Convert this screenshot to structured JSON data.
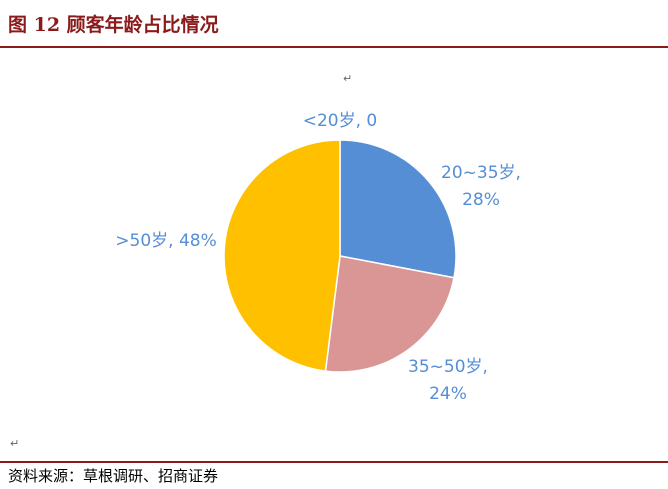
{
  "header": {
    "title": "图 12  顾客年龄占比情况"
  },
  "footer": {
    "source": "资料来源：草根调研、招商证券"
  },
  "marks": {
    "paragraph": "↵"
  },
  "chart_data": {
    "type": "pie",
    "categories": [
      "<20岁",
      "20~35岁",
      "35~50岁",
      ">50岁"
    ],
    "values": [
      0,
      28,
      24,
      48
    ],
    "data_labels": [
      "<20岁, 0",
      "20~35岁, 28%",
      "35~50岁, 24%",
      ">50岁, 48%"
    ],
    "colors": [
      "#4f81bd",
      "#558ed5",
      "#d99694",
      "#ffc000"
    ],
    "label_color": "#558ed5",
    "start_angle_deg": 0,
    "direction": "clockwise",
    "legend": "none"
  }
}
